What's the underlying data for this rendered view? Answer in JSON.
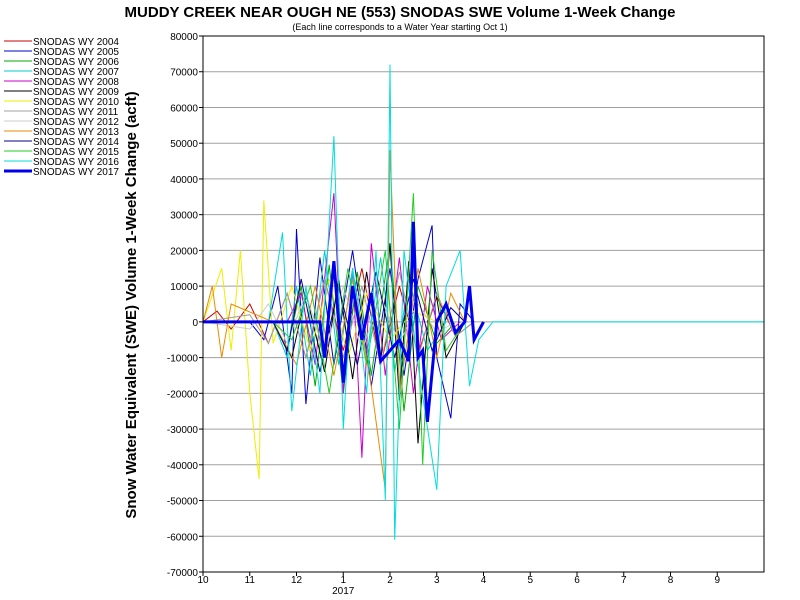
{
  "chart_data": {
    "type": "line",
    "title": "MUDDY CREEK NEAR OUGH NE (553) SNODAS SWE Volume 1-Week Change",
    "subtitle": "(Each line corresponds to a Water Year starting Oct 1)",
    "ylabel": "Snow Water Equivalent (SWE) Volume 1-Week Change (acft)",
    "xlabel": "",
    "x_tick_labels": [
      "10",
      "11",
      "12",
      "1",
      "2",
      "3",
      "4",
      "5",
      "6",
      "7",
      "8",
      "9"
    ],
    "x_year_label": "2017",
    "xlim": [
      0,
      12
    ],
    "ylim": [
      -70000,
      80000
    ],
    "y_ticks": [
      80000,
      70000,
      60000,
      50000,
      40000,
      30000,
      20000,
      10000,
      0,
      -10000,
      -20000,
      -30000,
      -40000,
      -50000,
      -60000,
      -70000
    ],
    "grid": true,
    "legend_position": "left",
    "series": [
      {
        "name": "SNODAS WY 2004",
        "color": "#cc0000",
        "width": 1,
        "points": [
          [
            0,
            0
          ],
          [
            0.3,
            3000
          ],
          [
            0.6,
            -2000
          ],
          [
            1.0,
            5000
          ],
          [
            1.4,
            -6000
          ],
          [
            1.8,
            8000
          ],
          [
            2.2,
            -10000
          ],
          [
            2.6,
            12000
          ],
          [
            3.0,
            -8000
          ],
          [
            3.4,
            15000
          ],
          [
            3.8,
            -12000
          ],
          [
            4.2,
            10000
          ],
          [
            4.6,
            -9000
          ],
          [
            5.0,
            7000
          ],
          [
            5.4,
            -4000
          ],
          [
            5.8,
            0
          ]
        ]
      },
      {
        "name": "SNODAS WY 2005",
        "color": "#0000cc",
        "width": 1,
        "points": [
          [
            0,
            0
          ],
          [
            1.0,
            0
          ],
          [
            1.3,
            -5000
          ],
          [
            1.6,
            10000
          ],
          [
            1.9,
            -20000
          ],
          [
            2.0,
            26000
          ],
          [
            2.2,
            -23000
          ],
          [
            2.5,
            18000
          ],
          [
            2.8,
            -12000
          ],
          [
            3.2,
            20000
          ],
          [
            3.6,
            -18000
          ],
          [
            4.0,
            15000
          ],
          [
            4.3,
            -15000
          ],
          [
            4.6,
            12000
          ],
          [
            4.9,
            27000
          ],
          [
            5.0,
            -10000
          ],
          [
            5.3,
            -27000
          ],
          [
            5.5,
            5000
          ],
          [
            5.8,
            0
          ]
        ]
      },
      {
        "name": "SNODAS WY 2006",
        "color": "#00aa00",
        "width": 1,
        "points": [
          [
            0,
            0
          ],
          [
            1.5,
            0
          ],
          [
            1.8,
            -8000
          ],
          [
            2.1,
            10000
          ],
          [
            2.4,
            -18000
          ],
          [
            2.7,
            16000
          ],
          [
            3.0,
            -20000
          ],
          [
            3.3,
            14000
          ],
          [
            3.6,
            -15000
          ],
          [
            4.0,
            22000
          ],
          [
            4.3,
            -25000
          ],
          [
            4.6,
            10000
          ],
          [
            5.0,
            -6000
          ],
          [
            5.4,
            0
          ]
        ]
      },
      {
        "name": "SNODAS WY 2007",
        "color": "#00cccc",
        "width": 1,
        "points": [
          [
            0,
            0
          ],
          [
            1.5,
            0
          ],
          [
            1.8,
            -10000
          ],
          [
            2.0,
            10000
          ],
          [
            2.3,
            -15000
          ],
          [
            2.6,
            20000
          ],
          [
            2.9,
            -12000
          ],
          [
            3.2,
            15000
          ],
          [
            3.5,
            -10000
          ],
          [
            3.8,
            18000
          ],
          [
            4.1,
            -14000
          ],
          [
            4.4,
            12000
          ],
          [
            4.8,
            -8000
          ],
          [
            5.2,
            0
          ]
        ]
      },
      {
        "name": "SNODAS WY 2008",
        "color": "#cc00cc",
        "width": 1,
        "points": [
          [
            0,
            0
          ],
          [
            1.8,
            0
          ],
          [
            2.1,
            8000
          ],
          [
            2.4,
            -12000
          ],
          [
            2.8,
            36000
          ],
          [
            3.0,
            -20000
          ],
          [
            3.2,
            15000
          ],
          [
            3.4,
            -38000
          ],
          [
            3.6,
            22000
          ],
          [
            3.9,
            -15000
          ],
          [
            4.2,
            18000
          ],
          [
            4.5,
            -20000
          ],
          [
            4.8,
            10000
          ],
          [
            5.1,
            -5000
          ],
          [
            5.5,
            0
          ]
        ]
      },
      {
        "name": "SNODAS WY 2009",
        "color": "#000000",
        "width": 1,
        "points": [
          [
            0,
            0
          ],
          [
            1.5,
            0
          ],
          [
            1.9,
            -10000
          ],
          [
            2.2,
            8000
          ],
          [
            2.6,
            -14000
          ],
          [
            2.9,
            12000
          ],
          [
            3.2,
            -16000
          ],
          [
            3.5,
            14000
          ],
          [
            3.8,
            -12000
          ],
          [
            4.0,
            22000
          ],
          [
            4.2,
            -22000
          ],
          [
            4.4,
            17000
          ],
          [
            4.6,
            -34000
          ],
          [
            4.9,
            15000
          ],
          [
            5.2,
            -10000
          ],
          [
            5.6,
            0
          ]
        ]
      },
      {
        "name": "SNODAS WY 2010",
        "color": "#eeee00",
        "width": 1,
        "points": [
          [
            0,
            0
          ],
          [
            0.4,
            15000
          ],
          [
            0.6,
            -8000
          ],
          [
            0.8,
            20000
          ],
          [
            1.0,
            -20000
          ],
          [
            1.2,
            -44000
          ],
          [
            1.3,
            34000
          ],
          [
            1.5,
            -6000
          ],
          [
            1.9,
            10000
          ],
          [
            2.3,
            -8000
          ],
          [
            2.7,
            12000
          ],
          [
            3.1,
            -10000
          ],
          [
            3.5,
            8000
          ],
          [
            4.0,
            -5000
          ],
          [
            4.5,
            3000
          ],
          [
            5.0,
            0
          ]
        ]
      },
      {
        "name": "SNODAS WY 2011",
        "color": "#a0a0a0",
        "width": 1,
        "points": [
          [
            0,
            0
          ],
          [
            1.0,
            2000
          ],
          [
            1.4,
            -6000
          ],
          [
            1.8,
            8000
          ],
          [
            2.2,
            -10000
          ],
          [
            2.6,
            12000
          ],
          [
            3.0,
            -10000
          ],
          [
            3.4,
            10000
          ],
          [
            3.8,
            -12000
          ],
          [
            4.2,
            14000
          ],
          [
            4.6,
            -10000
          ],
          [
            5.0,
            8000
          ],
          [
            5.4,
            -4000
          ],
          [
            5.8,
            0
          ]
        ]
      },
      {
        "name": "SNODAS WY 2012",
        "color": "#cccccc",
        "width": 1,
        "points": [
          [
            0,
            0
          ],
          [
            1.0,
            -2000
          ],
          [
            1.4,
            5000
          ],
          [
            1.8,
            -6000
          ],
          [
            2.2,
            8000
          ],
          [
            2.6,
            -9000
          ],
          [
            3.0,
            10000
          ],
          [
            3.4,
            -8000
          ],
          [
            3.8,
            7000
          ],
          [
            4.2,
            -6000
          ],
          [
            4.6,
            5000
          ],
          [
            5.0,
            -3000
          ],
          [
            5.4,
            0
          ]
        ]
      },
      {
        "name": "SNODAS WY 2013",
        "color": "#ee8800",
        "width": 1,
        "points": [
          [
            0,
            0
          ],
          [
            0.2,
            10000
          ],
          [
            0.4,
            -10000
          ],
          [
            0.6,
            5000
          ],
          [
            1.5,
            0
          ],
          [
            2.0,
            -12000
          ],
          [
            2.4,
            10000
          ],
          [
            2.8,
            -15000
          ],
          [
            3.2,
            12000
          ],
          [
            3.6,
            -18000
          ],
          [
            3.9,
            -47000
          ],
          [
            4.0,
            48000
          ],
          [
            4.2,
            -20000
          ],
          [
            4.6,
            15000
          ],
          [
            5.0,
            -10000
          ],
          [
            5.3,
            8000
          ],
          [
            5.6,
            0
          ]
        ]
      },
      {
        "name": "SNODAS WY 2014",
        "color": "#000088",
        "width": 1,
        "points": [
          [
            0,
            0
          ],
          [
            1.5,
            0
          ],
          [
            1.8,
            -8000
          ],
          [
            2.1,
            12000
          ],
          [
            2.5,
            -14000
          ],
          [
            2.9,
            10000
          ],
          [
            3.3,
            -12000
          ],
          [
            3.7,
            14000
          ],
          [
            4.1,
            -10000
          ],
          [
            4.5,
            12000
          ],
          [
            4.9,
            -8000
          ],
          [
            5.3,
            4000
          ],
          [
            5.6,
            0
          ]
        ]
      },
      {
        "name": "SNODAS WY 2015",
        "color": "#22cc22",
        "width": 1,
        "points": [
          [
            0,
            0
          ],
          [
            1.5,
            0
          ],
          [
            1.9,
            -5000
          ],
          [
            2.3,
            10000
          ],
          [
            2.7,
            -20000
          ],
          [
            3.1,
            15000
          ],
          [
            3.5,
            -12000
          ],
          [
            3.9,
            20000
          ],
          [
            4.2,
            -30000
          ],
          [
            4.5,
            36000
          ],
          [
            4.7,
            -40000
          ],
          [
            4.9,
            20000
          ],
          [
            5.2,
            -8000
          ],
          [
            5.6,
            0
          ]
        ]
      },
      {
        "name": "SNODAS WY 2016",
        "color": "#00dddd",
        "width": 1,
        "points": [
          [
            0,
            0
          ],
          [
            1.4,
            0
          ],
          [
            1.7,
            25000
          ],
          [
            1.9,
            -25000
          ],
          [
            2.2,
            10000
          ],
          [
            2.5,
            -20000
          ],
          [
            2.8,
            52000
          ],
          [
            3.0,
            -30000
          ],
          [
            3.2,
            15000
          ],
          [
            3.5,
            -20000
          ],
          [
            3.7,
            20000
          ],
          [
            3.9,
            -50000
          ],
          [
            4.0,
            72000
          ],
          [
            4.1,
            -61000
          ],
          [
            4.3,
            20000
          ],
          [
            4.6,
            -12000
          ],
          [
            5.0,
            -47000
          ],
          [
            5.2,
            10000
          ],
          [
            5.5,
            20000
          ],
          [
            5.7,
            -18000
          ],
          [
            5.9,
            -5000
          ],
          [
            6.2,
            0
          ],
          [
            12,
            0
          ]
        ]
      },
      {
        "name": "SNODAS WY 2017",
        "color": "#0000ee",
        "width": 3,
        "points": [
          [
            0,
            0
          ],
          [
            2.5,
            0
          ],
          [
            2.6,
            -10000
          ],
          [
            2.8,
            17000
          ],
          [
            3.0,
            -17000
          ],
          [
            3.2,
            10000
          ],
          [
            3.4,
            -5000
          ],
          [
            3.6,
            8000
          ],
          [
            3.8,
            -11000
          ],
          [
            4.0,
            -8000
          ],
          [
            4.2,
            -5000
          ],
          [
            4.4,
            -11000
          ],
          [
            4.5,
            28000
          ],
          [
            4.6,
            -10000
          ],
          [
            4.7,
            -8000
          ],
          [
            4.8,
            -28000
          ],
          [
            5.0,
            0
          ],
          [
            5.2,
            5000
          ],
          [
            5.4,
            -3000
          ],
          [
            5.6,
            0
          ],
          [
            5.7,
            10000
          ],
          [
            5.8,
            -5000
          ],
          [
            6.0,
            0
          ]
        ]
      }
    ]
  }
}
